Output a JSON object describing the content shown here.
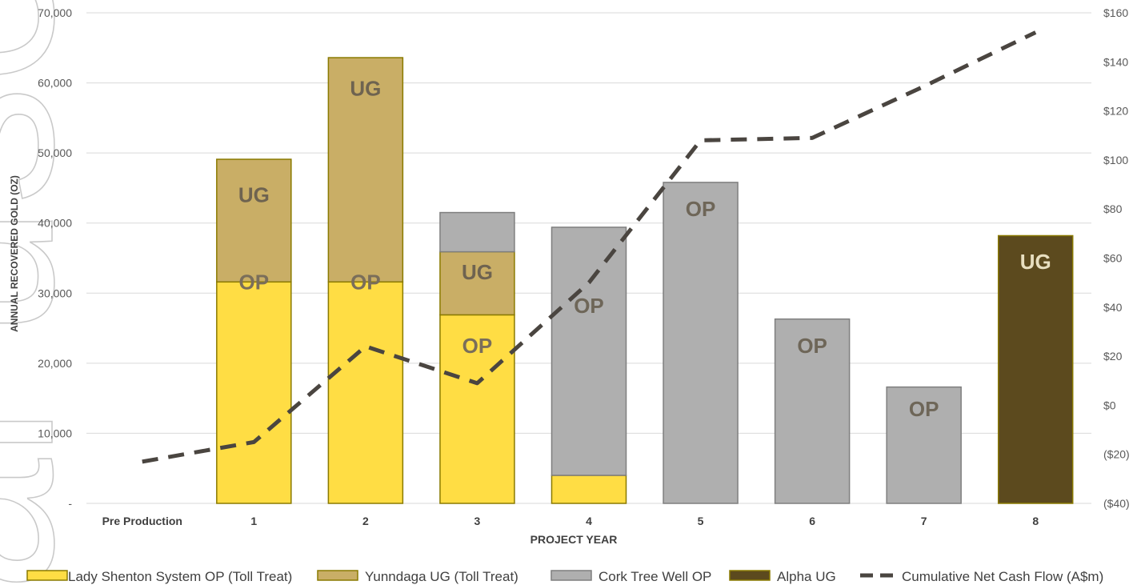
{
  "chart_data": {
    "type": "bar",
    "stacked": true,
    "watermark_text": "al use only",
    "categories": [
      "Pre Production",
      "1",
      "2",
      "3",
      "4",
      "5",
      "6",
      "7",
      "8"
    ],
    "xlabel": "PROJECT YEAR",
    "ylabel": "ANNUAL RECOVERED GOLD (OZ)",
    "ylim": [
      0,
      70000
    ],
    "y_ticks": [
      "-",
      "10,000",
      "20,000",
      "30,000",
      "40,000",
      "50,000",
      "60,000",
      "70,000"
    ],
    "y2lim": [
      -40,
      160
    ],
    "y2_ticks": [
      "($40)",
      "($20)",
      "$0",
      "$20",
      "$40",
      "$60",
      "$80",
      "$100",
      "$120",
      "$140",
      "$160"
    ],
    "grid": true,
    "legend_position": "bottom",
    "series": [
      {
        "name": "Lady Shenton System OP (Toll Treat)",
        "kind": "bar",
        "color": "#FFDD44",
        "edge": "#8A7A00",
        "values": [
          0,
          31600,
          31600,
          26900,
          4000,
          0,
          0,
          0,
          0
        ]
      },
      {
        "name": "Yunndaga UG (Toll Treat)",
        "kind": "bar",
        "color": "#C9AE66",
        "edge": "#8A7A00",
        "values": [
          0,
          17500,
          32000,
          9000,
          0,
          0,
          0,
          0,
          0
        ]
      },
      {
        "name": "Cork Tree Well OP",
        "kind": "bar",
        "color": "#AFAFAF",
        "edge": "#7F7F7F",
        "values": [
          0,
          0,
          0,
          5600,
          35400,
          45800,
          26300,
          16600,
          0
        ]
      },
      {
        "name": "Alpha UG",
        "kind": "bar",
        "color": "#5C4A1E",
        "edge": "#8A7A00",
        "values": [
          0,
          0,
          0,
          0,
          0,
          0,
          0,
          0,
          38200
        ]
      },
      {
        "name": "Cumulative Net Cash Flow (A$m)",
        "kind": "line",
        "axis": "secondary",
        "color": "#4A4540",
        "values": [
          -23,
          -15,
          24,
          9,
          50,
          108,
          109,
          130,
          152
        ]
      }
    ],
    "bar_labels": [
      {
        "category_index": 1,
        "value": 31600,
        "text": "OP",
        "color": "#7A6E5A"
      },
      {
        "category_index": 1,
        "value": 44000,
        "text": "UG",
        "color": "#6E6350"
      },
      {
        "category_index": 2,
        "value": 31600,
        "text": "OP",
        "color": "#7A6E5A"
      },
      {
        "category_index": 2,
        "value": 59200,
        "text": "UG",
        "color": "#6E6350"
      },
      {
        "category_index": 3,
        "value": 22500,
        "text": "OP",
        "color": "#7A6E5A"
      },
      {
        "category_index": 3,
        "value": 33000,
        "text": "UG",
        "color": "#6E6350"
      },
      {
        "category_index": 4,
        "value": 28200,
        "text": "OP",
        "color": "#6E6658"
      },
      {
        "category_index": 5,
        "value": 42000,
        "text": "OP",
        "color": "#6E6658"
      },
      {
        "category_index": 6,
        "value": 22500,
        "text": "OP",
        "color": "#6E6658"
      },
      {
        "category_index": 7,
        "value": 13500,
        "text": "OP",
        "color": "#6E6658"
      },
      {
        "category_index": 8,
        "value": 34500,
        "text": "UG",
        "color": "#E8DFC0"
      }
    ]
  }
}
